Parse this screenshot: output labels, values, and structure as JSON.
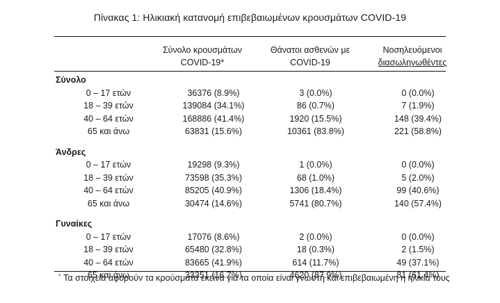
{
  "title": "Πίνακας 1: Ηλικιακή κατανομή επιβεβαιωμένων κρουσμάτων COVID-19",
  "columns": [
    {
      "line1": "Σύνολο κρουσμάτων",
      "line2": "COVID-19*"
    },
    {
      "line1": "Θάνατοι ασθενών με",
      "line2": "COVID-19"
    },
    {
      "line1": "Νοσηλευόμενοι",
      "line2": "διασωληνωθέντες"
    }
  ],
  "groups": [
    {
      "label": "Σύνολο",
      "rows": [
        {
          "age": "0 – 17 ετών",
          "cases": "36376 (8.9%)",
          "deaths": "3 (0.0%)",
          "intubated": "0 (0.0%)"
        },
        {
          "age": "18 – 39 ετών",
          "cases": "139084 (34.1%)",
          "deaths": "86 (0.7%)",
          "intubated": "7 (1.9%)"
        },
        {
          "age": "40 – 64 ετών",
          "cases": "168886 (41.4%)",
          "deaths": "1920 (15.5%)",
          "intubated": "148 (39.4%)"
        },
        {
          "age": "65 και άνω",
          "cases": "63831 (15.6%)",
          "deaths": "10361 (83.8%)",
          "intubated": "221 (58.8%)"
        }
      ]
    },
    {
      "label": "Άνδρες",
      "rows": [
        {
          "age": "0 – 17 ετών",
          "cases": "19298 (9.3%)",
          "deaths": "1 (0.0%)",
          "intubated": "0 (0.0%)"
        },
        {
          "age": "18 – 39 ετών",
          "cases": "73598 (35.3%)",
          "deaths": "68 (1.0%)",
          "intubated": "5 (2.0%)"
        },
        {
          "age": "40 – 64 ετών",
          "cases": "85205 (40.9%)",
          "deaths": "1306 (18.4%)",
          "intubated": "99 (40.6%)"
        },
        {
          "age": "65 και άνω",
          "cases": "30474 (14.6%)",
          "deaths": "5741 (80.7%)",
          "intubated": "140 (57.4%)"
        }
      ]
    },
    {
      "label": "Γυναίκες",
      "rows": [
        {
          "age": "0 – 17 ετών",
          "cases": "17076 (8.6%)",
          "deaths": "2 (0.0%)",
          "intubated": "0 (0.0%)"
        },
        {
          "age": "18 – 39 ετών",
          "cases": "65480 (32.8%)",
          "deaths": "18 (0.3%)",
          "intubated": "2 (1.5%)"
        },
        {
          "age": "40 – 64 ετών",
          "cases": "83665 (41.9%)",
          "deaths": "614 (11.7%)",
          "intubated": "49 (37.1%)"
        },
        {
          "age": "65 και άνω",
          "cases": "33351 (16.7%)",
          "deaths": "4620 (87.9%)",
          "intubated": "81 (61.4%)"
        }
      ]
    }
  ],
  "footnote": {
    "marker": "*",
    "text": "Τα στοιχεία αφορούν τα κρούσματα εκείνα για τα οποία είναι γνωστή και επιβεβαιωμένη η ηλικία τους"
  }
}
